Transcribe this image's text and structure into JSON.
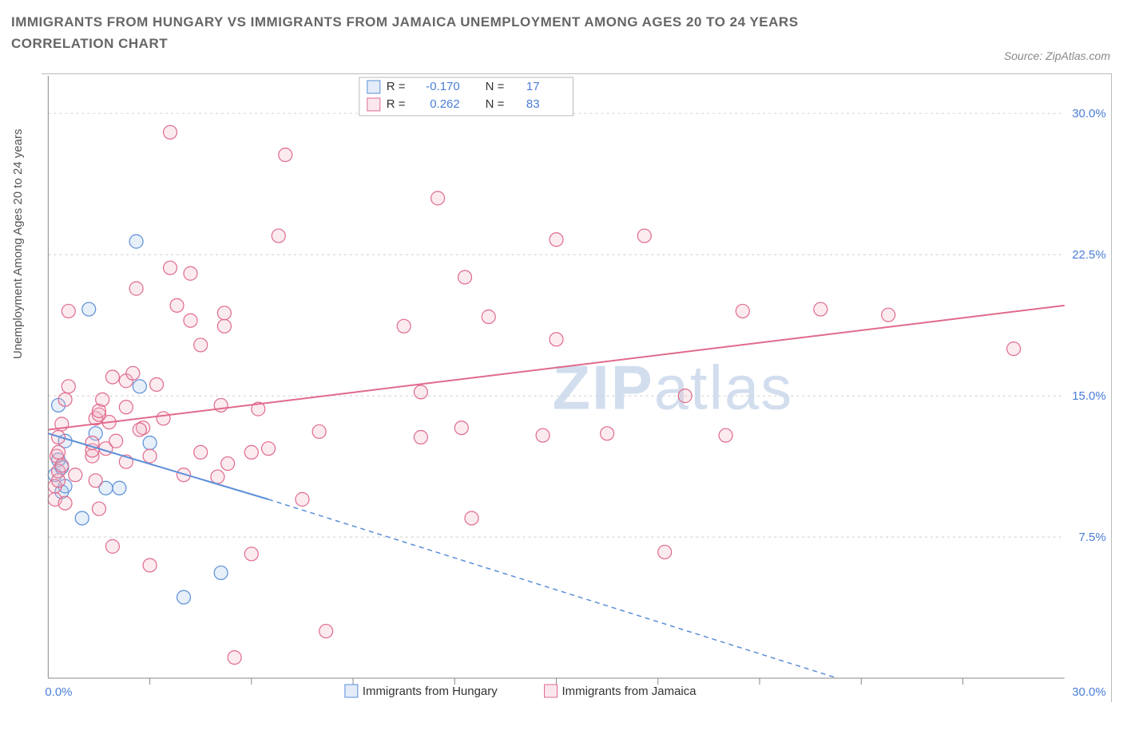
{
  "title": "IMMIGRANTS FROM HUNGARY VS IMMIGRANTS FROM JAMAICA UNEMPLOYMENT AMONG AGES 20 TO 24 YEARS CORRELATION CHART",
  "source": "Source: ZipAtlas.com",
  "ylabel": "Unemployment Among Ages 20 to 24 years",
  "watermark": "ZIPatlas",
  "chart": {
    "type": "scatter-correlation",
    "background_color": "#ffffff",
    "grid_color": "#cccccc",
    "axis_color": "#888888",
    "xlim": [
      0,
      30
    ],
    "ylim": [
      0,
      32
    ],
    "xticks_minor": [
      3,
      6,
      9,
      12,
      15,
      18,
      21,
      24,
      27
    ],
    "yticks": [
      7.5,
      15.0,
      22.5,
      30.0
    ],
    "ytick_labels": [
      "7.5%",
      "15.0%",
      "22.5%",
      "30.0%"
    ],
    "x_left_label": "0.0%",
    "x_right_label": "30.0%",
    "marker_radius": 8.5,
    "title_fontsize": 17,
    "label_fontsize": 15,
    "tick_fontsize": 15
  },
  "series": [
    {
      "name": "Immigrants from Hungary",
      "R": "-0.170",
      "N": "17",
      "color_stroke": "#5a8fd8",
      "color_fill": "#aac6ea",
      "trend": {
        "x1": 0.0,
        "y1": 13.0,
        "x2": 6.5,
        "y2": 9.5,
        "x2_dash": 23.3,
        "y2_dash": 0.0
      },
      "points": [
        [
          0.2,
          10.8
        ],
        [
          0.3,
          11.6
        ],
        [
          0.3,
          14.5
        ],
        [
          0.4,
          9.9
        ],
        [
          0.4,
          11.2
        ],
        [
          0.5,
          10.2
        ],
        [
          0.5,
          12.6
        ],
        [
          1.0,
          8.5
        ],
        [
          1.2,
          19.6
        ],
        [
          1.4,
          13.0
        ],
        [
          1.7,
          10.1
        ],
        [
          2.1,
          10.1
        ],
        [
          2.6,
          23.2
        ],
        [
          2.7,
          15.5
        ],
        [
          4.0,
          4.3
        ],
        [
          5.1,
          5.6
        ],
        [
          3.0,
          12.5
        ]
      ]
    },
    {
      "name": "Immigrants from Jamaica",
      "R": "0.262",
      "N": "83",
      "color_stroke": "#e06a8c",
      "color_fill": "#f1b6c7",
      "trend": {
        "x1": 0.0,
        "y1": 13.2,
        "x2": 30.0,
        "y2": 19.8
      },
      "points": [
        [
          0.2,
          9.5
        ],
        [
          0.2,
          10.2
        ],
        [
          0.25,
          11.8
        ],
        [
          0.3,
          10.5
        ],
        [
          0.3,
          11.0
        ],
        [
          0.3,
          12.0
        ],
        [
          0.3,
          12.8
        ],
        [
          0.4,
          11.3
        ],
        [
          0.4,
          13.5
        ],
        [
          0.5,
          9.3
        ],
        [
          0.5,
          14.8
        ],
        [
          0.6,
          15.5
        ],
        [
          0.6,
          19.5
        ],
        [
          0.8,
          10.8
        ],
        [
          1.3,
          11.8
        ],
        [
          1.3,
          12.1
        ],
        [
          1.3,
          12.5
        ],
        [
          1.4,
          10.5
        ],
        [
          1.4,
          13.8
        ],
        [
          1.5,
          9.0
        ],
        [
          1.5,
          14.0
        ],
        [
          1.5,
          14.2
        ],
        [
          1.6,
          14.8
        ],
        [
          1.7,
          12.2
        ],
        [
          1.8,
          13.6
        ],
        [
          1.9,
          7.0
        ],
        [
          2.0,
          12.6
        ],
        [
          2.3,
          11.5
        ],
        [
          2.3,
          14.4
        ],
        [
          2.3,
          15.8
        ],
        [
          2.5,
          16.2
        ],
        [
          2.6,
          20.7
        ],
        [
          2.8,
          13.3
        ],
        [
          3.0,
          6.0
        ],
        [
          3.0,
          11.8
        ],
        [
          3.4,
          13.8
        ],
        [
          3.6,
          21.8
        ],
        [
          3.6,
          29.0
        ],
        [
          3.8,
          19.8
        ],
        [
          4.0,
          10.8
        ],
        [
          4.2,
          19.0
        ],
        [
          4.2,
          21.5
        ],
        [
          4.5,
          12.0
        ],
        [
          4.5,
          17.7
        ],
        [
          5.0,
          10.7
        ],
        [
          5.1,
          14.5
        ],
        [
          5.2,
          18.7
        ],
        [
          5.2,
          19.4
        ],
        [
          5.3,
          11.4
        ],
        [
          5.5,
          1.1
        ],
        [
          6.0,
          6.6
        ],
        [
          6.0,
          12.0
        ],
        [
          6.2,
          14.3
        ],
        [
          6.8,
          23.5
        ],
        [
          7.0,
          27.8
        ],
        [
          7.5,
          9.5
        ],
        [
          8.0,
          13.1
        ],
        [
          8.2,
          2.5
        ],
        [
          9.4,
          30.5
        ],
        [
          10.5,
          18.7
        ],
        [
          11.0,
          12.8
        ],
        [
          11.5,
          25.5
        ],
        [
          12.2,
          13.3
        ],
        [
          12.3,
          21.3
        ],
        [
          12.5,
          8.5
        ],
        [
          13.0,
          19.2
        ],
        [
          14.6,
          12.9
        ],
        [
          15.0,
          18.0
        ],
        [
          15.0,
          23.3
        ],
        [
          16.5,
          13.0
        ],
        [
          17.6,
          23.5
        ],
        [
          18.2,
          6.7
        ],
        [
          18.8,
          15.0
        ],
        [
          20.0,
          12.9
        ],
        [
          20.5,
          19.5
        ],
        [
          22.8,
          19.6
        ],
        [
          24.8,
          19.3
        ],
        [
          28.5,
          17.5
        ],
        [
          11.0,
          15.2
        ],
        [
          6.5,
          12.2
        ],
        [
          3.2,
          15.6
        ],
        [
          1.9,
          16.0
        ],
        [
          2.7,
          13.2
        ]
      ]
    }
  ],
  "legend_top": {
    "R_label": "R =",
    "N_label": "N ="
  },
  "legend_bottom": {
    "items": [
      "Immigrants from Hungary",
      "Immigrants from Jamaica"
    ]
  }
}
